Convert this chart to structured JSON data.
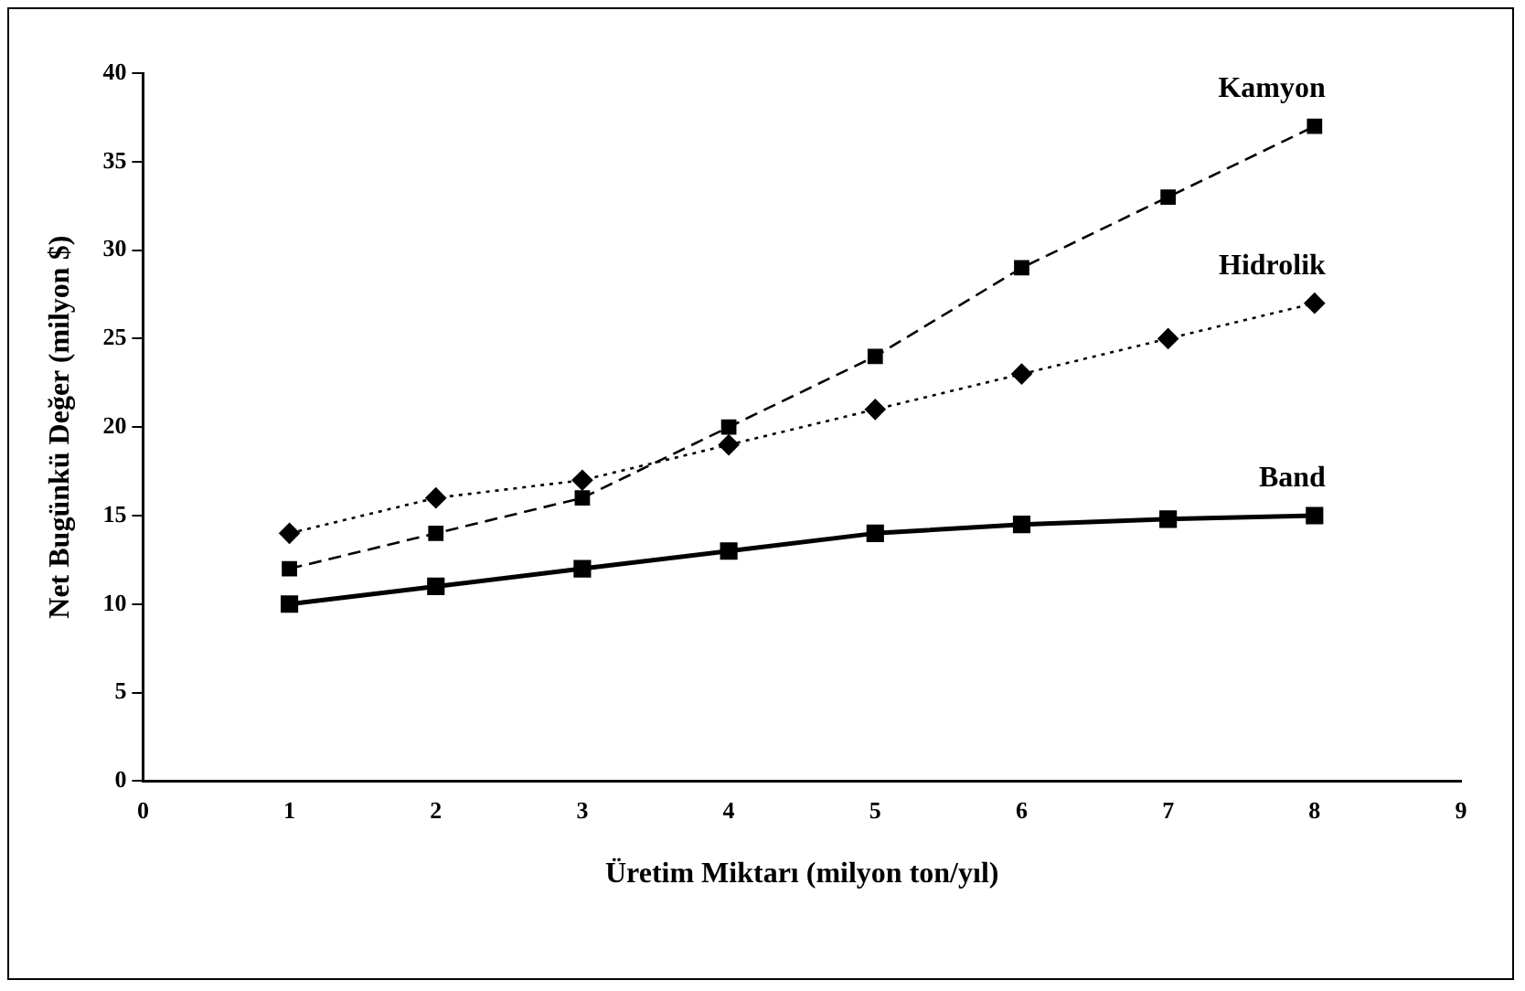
{
  "chart_data": {
    "type": "line",
    "xlabel": "Üretim Miktarı (milyon ton/yıl)",
    "ylabel": "Net Bugünkü Değer (milyon $)",
    "x": [
      1,
      2,
      3,
      4,
      5,
      6,
      7,
      8
    ],
    "xlim": [
      0,
      9
    ],
    "xticks": [
      0,
      1,
      2,
      3,
      4,
      5,
      6,
      7,
      8,
      9
    ],
    "ylim": [
      0,
      40
    ],
    "yticks": [
      0,
      5,
      10,
      15,
      20,
      25,
      30,
      35,
      40
    ],
    "grid": false,
    "legend": false,
    "series": [
      {
        "name": "Kamyon",
        "color": "#000000",
        "marker": "square",
        "line_style": "dashed",
        "values": [
          12,
          14,
          16,
          20,
          24,
          29,
          33,
          37
        ]
      },
      {
        "name": "Hidrolik",
        "color": "#000000",
        "marker": "diamond",
        "line_style": "dotted",
        "values": [
          14,
          16,
          17,
          19,
          21,
          23,
          25,
          27
        ]
      },
      {
        "name": "Band",
        "color": "#000000",
        "marker": "square",
        "line_style": "solid",
        "values": [
          10,
          11,
          12,
          13,
          14,
          14.5,
          14.8,
          15
        ]
      }
    ]
  }
}
